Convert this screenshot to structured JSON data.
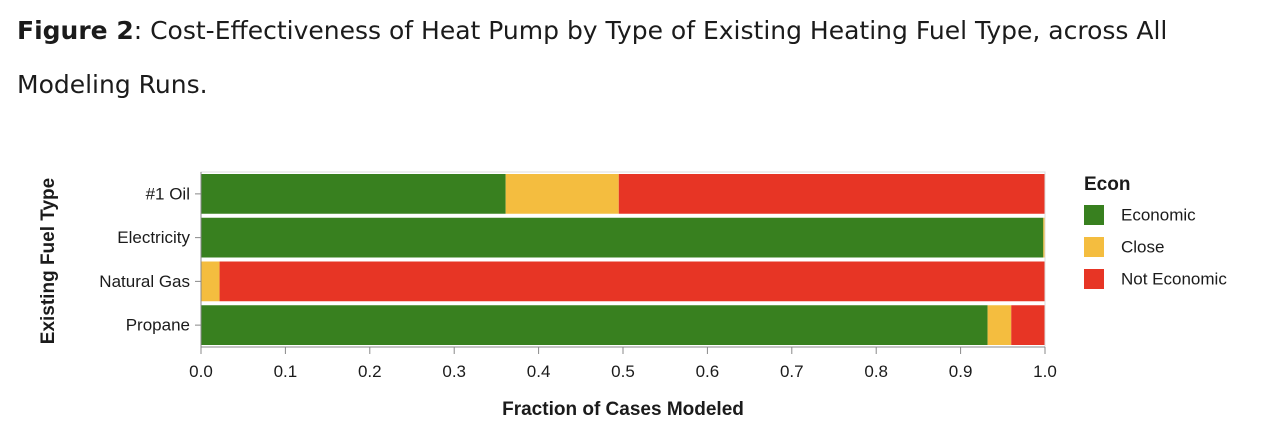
{
  "caption": {
    "label": "Figure 2",
    "text": ": Cost-Effectiveness of Heat Pump by Type of Existing Heating Fuel Type, across All Modeling Runs."
  },
  "chart_data": {
    "type": "bar",
    "orientation": "horizontal",
    "stacked": true,
    "categories": [
      "#1 Oil",
      "Electricity",
      "Natural Gas",
      "Propane"
    ],
    "series": [
      {
        "name": "Economic",
        "color": "#38801f",
        "values": [
          0.361,
          0.998,
          0.0,
          0.932
        ]
      },
      {
        "name": "Close",
        "color": "#f4bd3f",
        "values": [
          0.134,
          0.002,
          0.022,
          0.028
        ]
      },
      {
        "name": "Not Economic",
        "color": "#e73525",
        "values": [
          0.505,
          0.0,
          0.978,
          0.04
        ]
      }
    ],
    "xlabel": "Fraction of Cases Modeled",
    "ylabel": "Existing Fuel Type",
    "xlim": [
      0,
      1
    ],
    "xticks": [
      "0.0",
      "0.1",
      "0.2",
      "0.3",
      "0.4",
      "0.5",
      "0.6",
      "0.7",
      "0.8",
      "0.9",
      "1.0"
    ],
    "legend": {
      "title": "Econ",
      "placement": "right"
    },
    "grid": false
  }
}
